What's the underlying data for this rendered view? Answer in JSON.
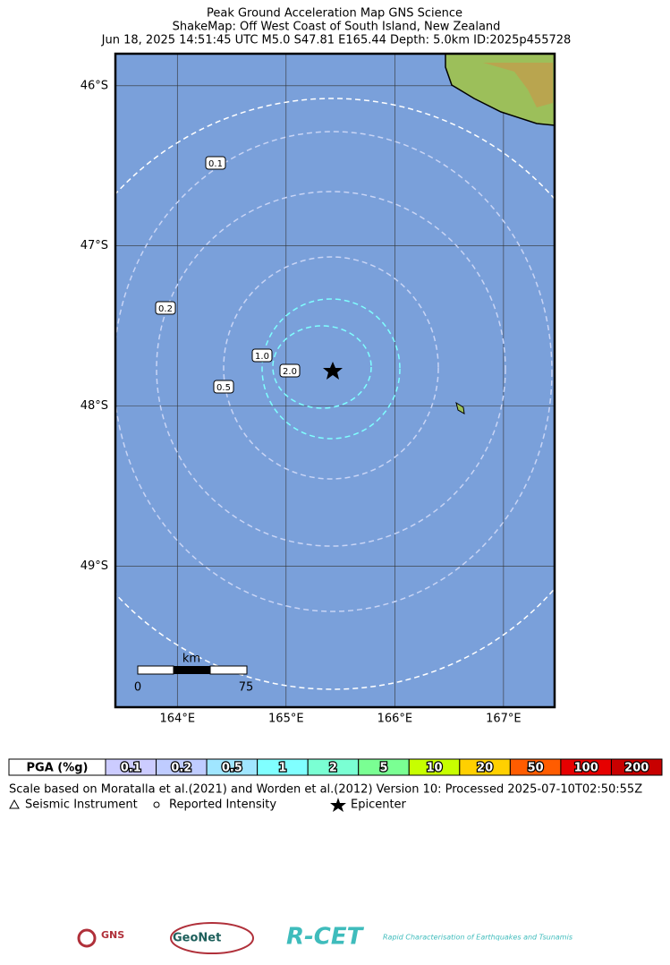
{
  "header": {
    "title": "Peak Ground Acceleration Map GNS Science",
    "subtitle": "ShakeMap: Off West Coast of South Island, New Zealand",
    "event": "Jun 18, 2025 14:51:45 UTC M5.0 S47.81 E165.44 Depth: 5.0km ID:2025p455728"
  },
  "map": {
    "xlim": [
      163.43,
      167.47
    ],
    "ylim": [
      -49.88,
      -45.8
    ],
    "xticks": [
      {
        "value": 164,
        "label": "164°E"
      },
      {
        "value": 165,
        "label": "165°E"
      },
      {
        "value": 166,
        "label": "166°E"
      },
      {
        "value": 167,
        "label": "167°E"
      }
    ],
    "yticks": [
      {
        "value": -46,
        "label": "46°S"
      },
      {
        "value": -47,
        "label": "47°S"
      },
      {
        "value": -48,
        "label": "48°S"
      },
      {
        "value": -49,
        "label": "49°S"
      }
    ],
    "contour_labels": [
      "0.1",
      "0.2",
      "0.5",
      "1.0",
      "2.0"
    ],
    "scale_bar": {
      "unit": "km",
      "start": "0",
      "end": "75"
    }
  },
  "legend_bar": {
    "header": "PGA (%g)",
    "labels": [
      "0.1",
      "0.2",
      "0.5",
      "1",
      "2",
      "5",
      "10",
      "20",
      "50",
      "100",
      "200"
    ],
    "colors": [
      "#ccccff",
      "#bfccff",
      "#a0e6ff",
      "#80ffff",
      "#7affd3",
      "#7aff93",
      "#c7ff00",
      "#ffd000",
      "#ff5c00",
      "#e60000",
      "#c80000"
    ]
  },
  "footer": {
    "note": "Scale based on Moratalla et al.(2021) and Worden et al.(2012) Version 10: Processed 2025-07-10T02:50:55Z",
    "symbols": [
      "Seismic Instrument",
      "Reported Intensity",
      "Epicenter"
    ]
  },
  "logos": [
    "GNS",
    "GeoNet",
    "R-CET",
    "Rapid Characterisation of Earthquakes and Tsunamis"
  ]
}
